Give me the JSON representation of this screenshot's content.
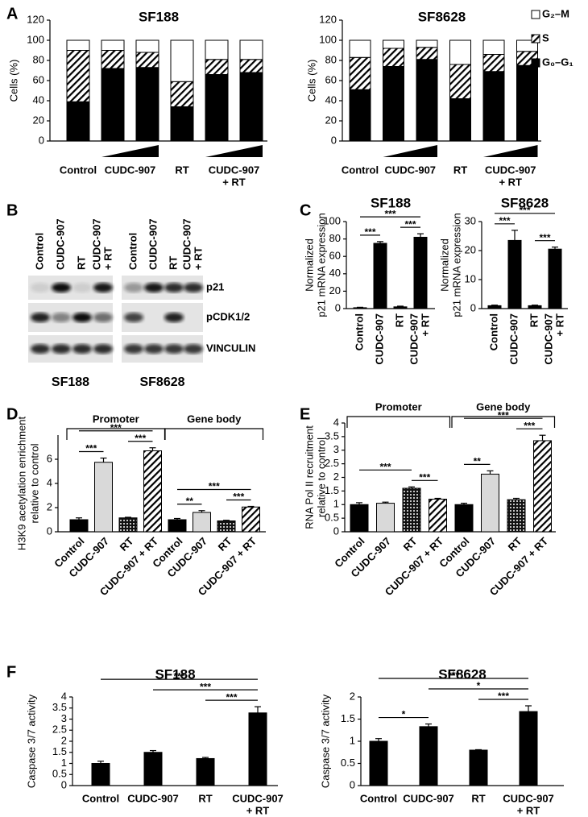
{
  "chart_data": [
    {
      "panel": "A",
      "type": "bar",
      "stacked": true,
      "title": "SF188",
      "ylabel": [
        "Cells (%)"
      ],
      "categories": [
        [
          "Control"
        ],
        [
          "CUDC-907"
        ],
        null,
        [
          "RT"
        ],
        [
          "CUDC-907",
          "+ RT"
        ],
        null
      ],
      "series": [
        {
          "name": "G₀–G₁",
          "pattern": "black",
          "values": [
            39,
            72,
            73,
            34,
            66,
            68
          ]
        },
        {
          "name": "S",
          "pattern": "hatch",
          "values": [
            51,
            18,
            15,
            25,
            15,
            13
          ]
        },
        {
          "name": "G₂–M",
          "pattern": "white",
          "values": [
            10,
            10,
            12,
            41,
            19,
            19
          ]
        }
      ],
      "ylim": [
        0,
        120
      ],
      "yticks": [
        0,
        20,
        40,
        60,
        80,
        100,
        120
      ]
    },
    {
      "type": "bar",
      "stacked": true,
      "title": "SF8628",
      "ylabel": [
        "Cells (%)"
      ],
      "legend": "right",
      "categories": [
        [
          "Control"
        ],
        [
          "CUDC-907"
        ],
        null,
        [
          "RT"
        ],
        [
          "CUDC-907",
          "+ RT"
        ],
        null
      ],
      "series": [
        {
          "name": "G₀–G₁",
          "pattern": "black",
          "values": [
            51,
            74,
            81,
            42,
            69,
            75
          ]
        },
        {
          "name": "S",
          "pattern": "hatch",
          "values": [
            32,
            18,
            12,
            34,
            17,
            14
          ]
        },
        {
          "name": "G₂–M",
          "pattern": "white",
          "values": [
            17,
            8,
            7,
            24,
            14,
            11
          ]
        }
      ],
      "ylim": [
        0,
        120
      ],
      "yticks": [
        0,
        20,
        40,
        60,
        80,
        100,
        120
      ]
    },
    {
      "panel": "C",
      "type": "bar",
      "title": "SF188",
      "ylabel": [
        "Normalized",
        "p21 mRNA expression"
      ],
      "categories": [
        [
          "Control"
        ],
        [
          "CUDC-907"
        ],
        [
          "RT"
        ],
        [
          "CUDC-907",
          "+ RT"
        ]
      ],
      "values": [
        1,
        75,
        2,
        82
      ],
      "errors": [
        0.5,
        2,
        0.8,
        4
      ],
      "pattern": "black",
      "annotations": [
        {
          "text": "***",
          "from": 0,
          "to": 1
        },
        {
          "text": "***",
          "from": 2,
          "to": 3
        },
        {
          "text": "***",
          "from": 0,
          "to": 3
        }
      ],
      "ylim": [
        0,
        100
      ],
      "yticks": [
        0,
        20,
        40,
        60,
        80,
        100
      ]
    },
    {
      "type": "bar",
      "title": "SF8628",
      "ylabel": [
        "Normalized",
        "p21 mRNA expression"
      ],
      "categories": [
        [
          "Control"
        ],
        [
          "CUDC-907"
        ],
        [
          "RT"
        ],
        [
          "CUDC-907",
          "+ RT"
        ]
      ],
      "values": [
        1,
        23.5,
        1,
        20.5
      ],
      "errors": [
        0.2,
        3.5,
        0.2,
        0.7
      ],
      "pattern": "black",
      "annotations": [
        {
          "text": "***",
          "from": 0,
          "to": 1
        },
        {
          "text": "***",
          "from": 2,
          "to": 3
        },
        {
          "text": "***",
          "from": 0,
          "to": 3
        }
      ],
      "ylim": [
        0,
        30
      ],
      "yticks": [
        0,
        10,
        20,
        30
      ]
    },
    {
      "panel": "D",
      "type": "bar",
      "ylabel": [
        "H3K9 acetylation enrichment",
        "relative to control"
      ],
      "categories": [
        [
          "Control"
        ],
        [
          "CUDC-907"
        ],
        [
          "RT"
        ],
        [
          "CUDC-907 + RT"
        ],
        [
          "Control"
        ],
        [
          "CUDC-907"
        ],
        [
          "RT"
        ],
        [
          "CUDC-907 + RT"
        ]
      ],
      "values": [
        1.0,
        5.75,
        1.15,
        6.7,
        1.0,
        1.6,
        0.9,
        2.05
      ],
      "errors": [
        0.15,
        0.35,
        0.05,
        0.25,
        0.1,
        0.15,
        0.05,
        0.05
      ],
      "patterns": [
        "black",
        "light",
        "dots",
        "hatch",
        "black",
        "light",
        "dots",
        "hatch"
      ],
      "groups": [
        {
          "name": "Promoter",
          "from": 0,
          "to": 3
        },
        {
          "name": "Gene body",
          "from": 4,
          "to": 7
        }
      ],
      "annotations": [
        {
          "text": "***",
          "from": 0,
          "to": 1
        },
        {
          "text": "***",
          "from": 2,
          "to": 3
        },
        {
          "text": "***",
          "from": 0,
          "to": 3
        },
        {
          "text": "**",
          "from": 4,
          "to": 5
        },
        {
          "text": "***",
          "from": 6,
          "to": 7
        },
        {
          "text": "***",
          "from": 4,
          "to": 7
        }
      ],
      "ylim": [
        0,
        8
      ],
      "yticks": [
        0,
        2,
        4,
        6
      ]
    },
    {
      "panel": "E",
      "type": "bar",
      "ylabel": [
        "RNA Pol II recruitment",
        "relative to control"
      ],
      "categories": [
        [
          "Control"
        ],
        [
          "CUDC-907"
        ],
        [
          "RT"
        ],
        [
          "CUDC-907 + RT"
        ],
        [
          "Control"
        ],
        [
          "CUDC-907"
        ],
        [
          "RT"
        ],
        [
          "CUDC-907 + RT"
        ]
      ],
      "values": [
        1.0,
        1.05,
        1.6,
        1.2,
        1.0,
        2.12,
        1.18,
        3.35
      ],
      "errors": [
        0.07,
        0.04,
        0.05,
        0.03,
        0.05,
        0.12,
        0.05,
        0.2
      ],
      "patterns": [
        "black",
        "light",
        "dots",
        "hatch",
        "black",
        "light",
        "dots",
        "hatch"
      ],
      "groups": [
        {
          "name": "Promoter",
          "from": 0,
          "to": 3
        },
        {
          "name": "Gene body",
          "from": 4,
          "to": 7
        }
      ],
      "annotations": [
        {
          "text": "***",
          "from": 2,
          "to": 3
        },
        {
          "text": "***",
          "from": 0,
          "to": 2
        },
        {
          "text": "**",
          "from": 4,
          "to": 5
        },
        {
          "text": "***",
          "from": 6,
          "to": 7
        },
        {
          "text": "***",
          "from": 4,
          "to": 7
        }
      ],
      "ylim": [
        0,
        4
      ],
      "yticks": [
        0,
        0.5,
        1,
        1.5,
        2,
        2.5,
        3,
        3.5,
        4
      ]
    },
    {
      "panel": "F",
      "type": "bar",
      "title": "SF188",
      "ylabel": [
        "Caspase 3/7 activity"
      ],
      "categories": [
        [
          "Control"
        ],
        [
          "CUDC-907"
        ],
        [
          "RT"
        ],
        [
          "CUDC-907",
          "+  RT"
        ]
      ],
      "values": [
        1.0,
        1.5,
        1.22,
        3.28
      ],
      "errors": [
        0.1,
        0.08,
        0.05,
        0.28
      ],
      "pattern": "black",
      "annotations": [
        {
          "text": "***",
          "from": 2,
          "to": 3
        },
        {
          "text": "***",
          "from": 1,
          "to": 3
        },
        {
          "text": "***",
          "from": 0,
          "to": 3
        }
      ],
      "ylim": [
        0,
        4
      ],
      "yticks": [
        0,
        0.5,
        1,
        1.5,
        2,
        2.5,
        3,
        3.5,
        4
      ]
    },
    {
      "type": "bar",
      "title": "SF8628",
      "ylabel": [
        "Caspase 3/7 activity"
      ],
      "categories": [
        [
          "Control"
        ],
        [
          "CUDC-907"
        ],
        [
          "RT"
        ],
        [
          "CUDC-907",
          "+  RT"
        ]
      ],
      "values": [
        1.0,
        1.33,
        0.8,
        1.67
      ],
      "errors": [
        0.06,
        0.06,
        0.01,
        0.13
      ],
      "pattern": "black",
      "annotations": [
        {
          "text": "*",
          "from": 0,
          "to": 1
        },
        {
          "text": "***",
          "from": 2,
          "to": 3
        },
        {
          "text": "*",
          "from": 1,
          "to": 3
        },
        {
          "text": "***",
          "from": 0,
          "to": 3
        }
      ],
      "ylim": [
        0,
        2
      ],
      "yticks": [
        0,
        0.5,
        1,
        1.5,
        2
      ]
    }
  ],
  "blot": {
    "panel": "B",
    "lanes": [
      [
        "Control"
      ],
      [
        "CUDC-907"
      ],
      [
        "RT"
      ],
      [
        "CUDC-907",
        "+ RT"
      ]
    ],
    "proteins": [
      "p21",
      "pCDK1/2",
      "VINCULIN"
    ],
    "cell_lines": [
      "SF188",
      "SF8628"
    ]
  }
}
